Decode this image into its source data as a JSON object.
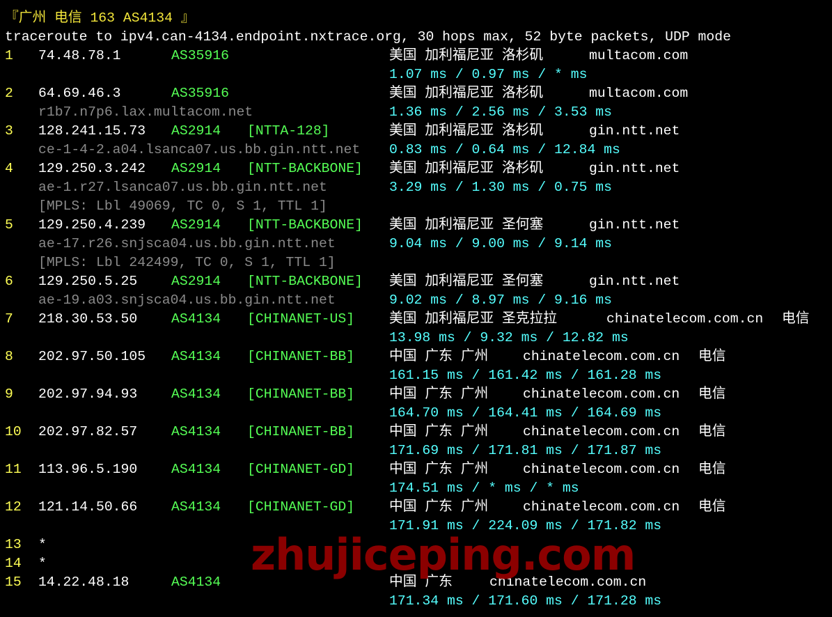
{
  "title": "『广州 电信 163 AS4134 』",
  "header": "traceroute to ipv4.can-4134.endpoint.nxtrace.org, 30 hops max, 52 byte packets, UDP mode",
  "watermark": "zhujiceping.com",
  "colors": {
    "hop_number": "#ffff55",
    "ip": "#ffffff",
    "asn": "#55ff55",
    "rdns": "#8a8a8a",
    "rtt": "#55ffff",
    "watermark": "#8b0000"
  },
  "hops": [
    {
      "n": "1",
      "ip": "74.48.78.1",
      "asn": "AS35916",
      "tag": "",
      "geo": "美国 加利福尼亚 洛杉矶",
      "org": "multacom.com",
      "isp": "",
      "rdns": "",
      "mpls": "",
      "rtt": "1.07 ms / 0.97 ms / * ms"
    },
    {
      "n": "2",
      "ip": "64.69.46.3",
      "asn": "AS35916",
      "tag": "",
      "geo": "美国 加利福尼亚 洛杉矶",
      "org": "multacom.com",
      "isp": "",
      "rdns": "r1b7.n7p6.lax.multacom.net",
      "mpls": "",
      "rtt": "1.36 ms / 2.56 ms / 3.53 ms"
    },
    {
      "n": "3",
      "ip": "128.241.15.73",
      "asn": "AS2914",
      "tag": "[NTTA-128]",
      "geo": "美国 加利福尼亚 洛杉矶",
      "org": "gin.ntt.net",
      "isp": "",
      "rdns": "ce-1-4-2.a04.lsanca07.us.bb.gin.ntt.net",
      "mpls": "",
      "rtt": "0.83 ms / 0.64 ms / 12.84 ms"
    },
    {
      "n": "4",
      "ip": "129.250.3.242",
      "asn": "AS2914",
      "tag": "[NTT-BACKBONE]",
      "geo": "美国 加利福尼亚 洛杉矶",
      "org": "gin.ntt.net",
      "isp": "",
      "rdns": "ae-1.r27.lsanca07.us.bb.gin.ntt.net",
      "mpls": "[MPLS: Lbl 49069, TC 0, S 1, TTL 1]",
      "rtt": "3.29 ms / 1.30 ms / 0.75 ms"
    },
    {
      "n": "5",
      "ip": "129.250.4.239",
      "asn": "AS2914",
      "tag": "[NTT-BACKBONE]",
      "geo": "美国 加利福尼亚 圣何塞",
      "org": "gin.ntt.net",
      "isp": "",
      "rdns": "ae-17.r26.snjsca04.us.bb.gin.ntt.net",
      "mpls": "[MPLS: Lbl 242499, TC 0, S 1, TTL 1]",
      "rtt": "9.04 ms / 9.00 ms / 9.14 ms"
    },
    {
      "n": "6",
      "ip": "129.250.5.25",
      "asn": "AS2914",
      "tag": "[NTT-BACKBONE]",
      "geo": "美国 加利福尼亚 圣何塞",
      "org": "gin.ntt.net",
      "isp": "",
      "rdns": "ae-19.a03.snjsca04.us.bb.gin.ntt.net",
      "mpls": "",
      "rtt": "9.02 ms / 8.97 ms / 9.16 ms"
    },
    {
      "n": "7",
      "ip": "218.30.53.50",
      "asn": "AS4134",
      "tag": "[CHINANET-US]",
      "geo": "美国 加利福尼亚 圣克拉拉",
      "org": "chinatelecom.com.cn",
      "isp": "电信",
      "rdns": "",
      "mpls": "",
      "rtt": "13.98 ms / 9.32 ms / 12.82 ms"
    },
    {
      "n": "8",
      "ip": "202.97.50.105",
      "asn": "AS4134",
      "tag": "[CHINANET-BB]",
      "geo": "中国 广东 广州",
      "org": "chinatelecom.com.cn",
      "isp": "电信",
      "rdns": "",
      "mpls": "",
      "rtt": "161.15 ms / 161.42 ms / 161.28 ms"
    },
    {
      "n": "9",
      "ip": "202.97.94.93",
      "asn": "AS4134",
      "tag": "[CHINANET-BB]",
      "geo": "中国 广东 广州",
      "org": "chinatelecom.com.cn",
      "isp": "电信",
      "rdns": "",
      "mpls": "",
      "rtt": "164.70 ms / 164.41 ms / 164.69 ms"
    },
    {
      "n": "10",
      "ip": "202.97.82.57",
      "asn": "AS4134",
      "tag": "[CHINANET-BB]",
      "geo": "中国 广东 广州",
      "org": "chinatelecom.com.cn",
      "isp": "电信",
      "rdns": "",
      "mpls": "",
      "rtt": "171.69 ms / 171.81 ms / 171.87 ms"
    },
    {
      "n": "11",
      "ip": "113.96.5.190",
      "asn": "AS4134",
      "tag": "[CHINANET-GD]",
      "geo": "中国 广东 广州",
      "org": "chinatelecom.com.cn",
      "isp": "电信",
      "rdns": "",
      "mpls": "",
      "rtt": "174.51 ms / * ms / * ms"
    },
    {
      "n": "12",
      "ip": "121.14.50.66",
      "asn": "AS4134",
      "tag": "[CHINANET-GD]",
      "geo": "中国 广东 广州",
      "org": "chinatelecom.com.cn",
      "isp": "电信",
      "rdns": "",
      "mpls": "",
      "rtt": "171.91 ms / 224.09 ms / 171.82 ms"
    },
    {
      "n": "13",
      "ip": "*",
      "asn": "",
      "tag": "",
      "geo": "",
      "org": "",
      "isp": "",
      "rdns": "",
      "mpls": "",
      "rtt": ""
    },
    {
      "n": "14",
      "ip": "*",
      "asn": "",
      "tag": "",
      "geo": "",
      "org": "",
      "isp": "",
      "rdns": "",
      "mpls": "",
      "rtt": ""
    },
    {
      "n": "15",
      "ip": "14.22.48.18",
      "asn": "AS4134",
      "tag": "",
      "geo": "中国 广东",
      "org": "chinatelecom.com.cn",
      "isp": "",
      "rdns": "",
      "mpls": "",
      "rtt": "171.34 ms / 171.60 ms / 171.28 ms"
    }
  ]
}
